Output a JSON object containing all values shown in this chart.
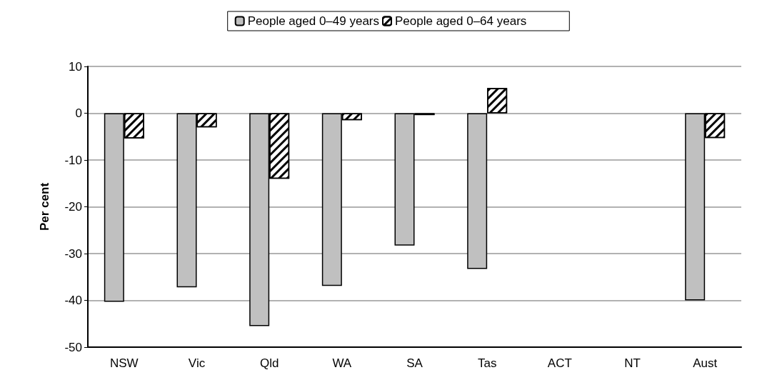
{
  "chart_data": {
    "type": "bar",
    "ylabel": "Per cent",
    "categories": [
      "NSW",
      "Vic",
      "Qld",
      "WA",
      "SA",
      "Tas",
      "ACT",
      "NT",
      "Aust"
    ],
    "series": [
      {
        "name": "People aged 0–49 years",
        "color": "#c0c0c0",
        "values": [
          -40.3,
          -37.2,
          -45.5,
          -36.9,
          -28.3,
          -33.3,
          null,
          null,
          -40
        ]
      },
      {
        "name": "People aged 0–64 years",
        "color": "#ffffff",
        "values": [
          -5.4,
          -3,
          -14,
          -1.5,
          -0.4,
          5.4,
          null,
          null,
          -5.3
        ]
      }
    ],
    "ylim": [
      -50,
      10
    ],
    "yticks": [
      -50,
      -40,
      -30,
      -20,
      -10,
      0,
      10
    ],
    "grid": "y",
    "legend": "top"
  }
}
